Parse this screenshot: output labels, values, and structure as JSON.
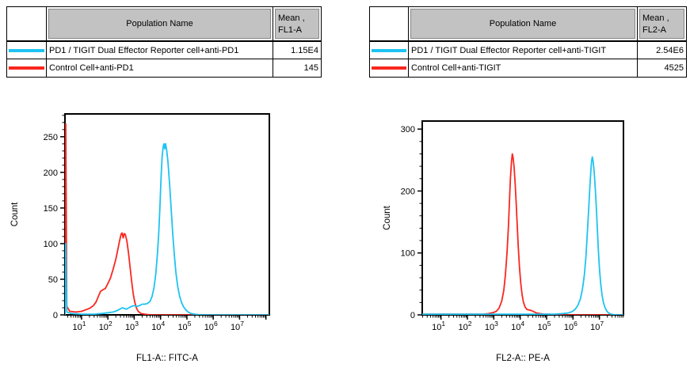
{
  "colors": {
    "cyan": "#1ec3f2",
    "red": "#f9271f",
    "table_header_bg": "#c2c2c2",
    "axis": "#000000"
  },
  "tables": [
    {
      "name_header": "Population Name",
      "mean_header_line1": "Mean ,",
      "mean_header_line2": "FL1-A",
      "rows": [
        {
          "color": "cyan",
          "name": "PD1 / TIGIT Dual Effector Reporter cell+anti-PD1",
          "mean": "1.15E4"
        },
        {
          "color": "red",
          "name": "Control Cell+anti-PD1",
          "mean": "145"
        }
      ]
    },
    {
      "name_header": "Population Name",
      "mean_header_line1": "Mean ,",
      "mean_header_line2": "FL2-A",
      "rows": [
        {
          "color": "cyan",
          "name": "PD1 / TIGIT Dual Effector Reporter cell+anti-TIGIT",
          "mean": "2.54E6"
        },
        {
          "color": "red",
          "name": "Control Cell+anti-TIGIT",
          "mean": "4525"
        }
      ]
    }
  ],
  "chart_data": [
    {
      "type": "line",
      "subtype": "flow-cytometry-histogram",
      "title": "",
      "xlabel": "FL1-A:: FITC-A",
      "ylabel": "Count",
      "x_scale": "log10",
      "x_log_range": [
        0.37,
        8.13
      ],
      "x_decades_labeled": [
        1,
        2,
        3,
        4,
        5,
        6,
        7
      ],
      "ylim": [
        0,
        282
      ],
      "y_major_ticks": [
        0,
        50,
        100,
        150,
        200,
        250
      ],
      "y_minor_step": 10,
      "grid": false,
      "legend_position": "table-above",
      "series": [
        {
          "name": "Control Cell+anti-PD1",
          "color": "red",
          "points_log10x_count": [
            [
              0.37,
              0
            ],
            [
              0.4,
              268
            ],
            [
              0.44,
              12
            ],
            [
              0.55,
              5
            ],
            [
              0.8,
              4
            ],
            [
              1.0,
              5
            ],
            [
              1.15,
              7
            ],
            [
              1.3,
              9
            ],
            [
              1.45,
              13
            ],
            [
              1.55,
              18
            ],
            [
              1.65,
              27
            ],
            [
              1.72,
              33
            ],
            [
              1.8,
              35
            ],
            [
              1.9,
              37
            ],
            [
              2.0,
              44
            ],
            [
              2.1,
              52
            ],
            [
              2.2,
              64
            ],
            [
              2.3,
              78
            ],
            [
              2.38,
              92
            ],
            [
              2.44,
              103
            ],
            [
              2.5,
              113
            ],
            [
              2.54,
              115
            ],
            [
              2.58,
              108
            ],
            [
              2.62,
              114
            ],
            [
              2.66,
              113
            ],
            [
              2.72,
              104
            ],
            [
              2.78,
              88
            ],
            [
              2.84,
              68
            ],
            [
              2.9,
              48
            ],
            [
              2.96,
              30
            ],
            [
              3.02,
              18
            ],
            [
              3.08,
              10
            ],
            [
              3.15,
              5
            ],
            [
              3.25,
              2
            ],
            [
              3.4,
              1
            ],
            [
              3.6,
              0
            ],
            [
              8.13,
              0
            ]
          ]
        },
        {
          "name": "PD1 / TIGIT Dual Effector Reporter cell+anti-PD1",
          "color": "cyan",
          "points_log10x_count": [
            [
              0.37,
              0
            ],
            [
              0.4,
              100
            ],
            [
              0.44,
              4
            ],
            [
              0.6,
              2
            ],
            [
              1.0,
              1
            ],
            [
              1.5,
              1
            ],
            [
              1.8,
              2
            ],
            [
              2.0,
              3
            ],
            [
              2.2,
              4
            ],
            [
              2.35,
              6
            ],
            [
              2.45,
              8
            ],
            [
              2.55,
              10
            ],
            [
              2.62,
              9
            ],
            [
              2.7,
              8
            ],
            [
              2.8,
              10
            ],
            [
              2.9,
              12
            ],
            [
              3.0,
              13
            ],
            [
              3.1,
              12
            ],
            [
              3.2,
              13
            ],
            [
              3.3,
              15
            ],
            [
              3.4,
              15
            ],
            [
              3.5,
              16
            ],
            [
              3.6,
              19
            ],
            [
              3.68,
              26
            ],
            [
              3.75,
              38
            ],
            [
              3.82,
              58
            ],
            [
              3.88,
              85
            ],
            [
              3.93,
              115
            ],
            [
              3.98,
              155
            ],
            [
              4.02,
              195
            ],
            [
              4.06,
              222
            ],
            [
              4.1,
              236
            ],
            [
              4.13,
              240
            ],
            [
              4.16,
              233
            ],
            [
              4.19,
              240
            ],
            [
              4.23,
              232
            ],
            [
              4.28,
              215
            ],
            [
              4.34,
              185
            ],
            [
              4.4,
              150
            ],
            [
              4.46,
              115
            ],
            [
              4.52,
              85
            ],
            [
              4.58,
              60
            ],
            [
              4.65,
              40
            ],
            [
              4.72,
              27
            ],
            [
              4.8,
              17
            ],
            [
              4.88,
              11
            ],
            [
              4.96,
              7
            ],
            [
              5.05,
              4
            ],
            [
              5.15,
              2
            ],
            [
              5.3,
              1
            ],
            [
              5.5,
              0
            ],
            [
              8.13,
              0
            ]
          ]
        }
      ]
    },
    {
      "type": "line",
      "subtype": "flow-cytometry-histogram",
      "title": "",
      "xlabel": "FL2-A:: PE-A",
      "ylabel": "Count",
      "x_scale": "log10",
      "x_log_range": [
        0.29,
        7.91
      ],
      "x_decades_labeled": [
        1,
        2,
        3,
        4,
        5,
        6,
        7
      ],
      "ylim": [
        0,
        313
      ],
      "y_major_ticks": [
        0,
        100,
        200,
        300
      ],
      "y_minor_step": 20,
      "grid": false,
      "legend_position": "table-above",
      "series": [
        {
          "name": "Control Cell+anti-TIGIT",
          "color": "red",
          "points_log10x_count": [
            [
              0.29,
              1
            ],
            [
              1.5,
              1
            ],
            [
              2.3,
              1
            ],
            [
              2.6,
              1
            ],
            [
              2.8,
              2
            ],
            [
              3.0,
              4
            ],
            [
              3.1,
              6
            ],
            [
              3.2,
              11
            ],
            [
              3.3,
              22
            ],
            [
              3.38,
              40
            ],
            [
              3.44,
              65
            ],
            [
              3.5,
              100
            ],
            [
              3.55,
              140
            ],
            [
              3.59,
              180
            ],
            [
              3.63,
              220
            ],
            [
              3.67,
              248
            ],
            [
              3.7,
              260
            ],
            [
              3.73,
              254
            ],
            [
              3.77,
              238
            ],
            [
              3.81,
              212
            ],
            [
              3.85,
              178
            ],
            [
              3.89,
              142
            ],
            [
              3.93,
              108
            ],
            [
              3.97,
              78
            ],
            [
              4.02,
              52
            ],
            [
              4.07,
              33
            ],
            [
              4.12,
              21
            ],
            [
              4.18,
              13
            ],
            [
              4.25,
              9
            ],
            [
              4.33,
              8
            ],
            [
              4.42,
              7
            ],
            [
              4.52,
              5
            ],
            [
              4.62,
              3
            ],
            [
              4.75,
              2
            ],
            [
              4.9,
              1
            ],
            [
              5.1,
              1
            ],
            [
              5.3,
              0
            ],
            [
              7.91,
              0
            ]
          ]
        },
        {
          "name": "PD1 / TIGIT Dual Effector Reporter cell+anti-TIGIT",
          "color": "cyan",
          "points_log10x_count": [
            [
              0.29,
              1
            ],
            [
              3.0,
              1
            ],
            [
              4.5,
              1
            ],
            [
              5.3,
              1
            ],
            [
              5.6,
              2
            ],
            [
              5.8,
              3
            ],
            [
              5.95,
              5
            ],
            [
              6.08,
              9
            ],
            [
              6.18,
              15
            ],
            [
              6.28,
              26
            ],
            [
              6.36,
              42
            ],
            [
              6.43,
              65
            ],
            [
              6.49,
              95
            ],
            [
              6.54,
              130
            ],
            [
              6.59,
              168
            ],
            [
              6.63,
              200
            ],
            [
              6.67,
              230
            ],
            [
              6.7,
              248
            ],
            [
              6.73,
              255
            ],
            [
              6.76,
              248
            ],
            [
              6.8,
              232
            ],
            [
              6.84,
              207
            ],
            [
              6.88,
              175
            ],
            [
              6.92,
              140
            ],
            [
              6.96,
              105
            ],
            [
              7.0,
              75
            ],
            [
              7.05,
              50
            ],
            [
              7.1,
              32
            ],
            [
              7.15,
              20
            ],
            [
              7.21,
              12
            ],
            [
              7.28,
              6
            ],
            [
              7.35,
              3
            ],
            [
              7.45,
              1
            ],
            [
              7.6,
              0
            ],
            [
              7.91,
              0
            ]
          ]
        }
      ]
    }
  ]
}
